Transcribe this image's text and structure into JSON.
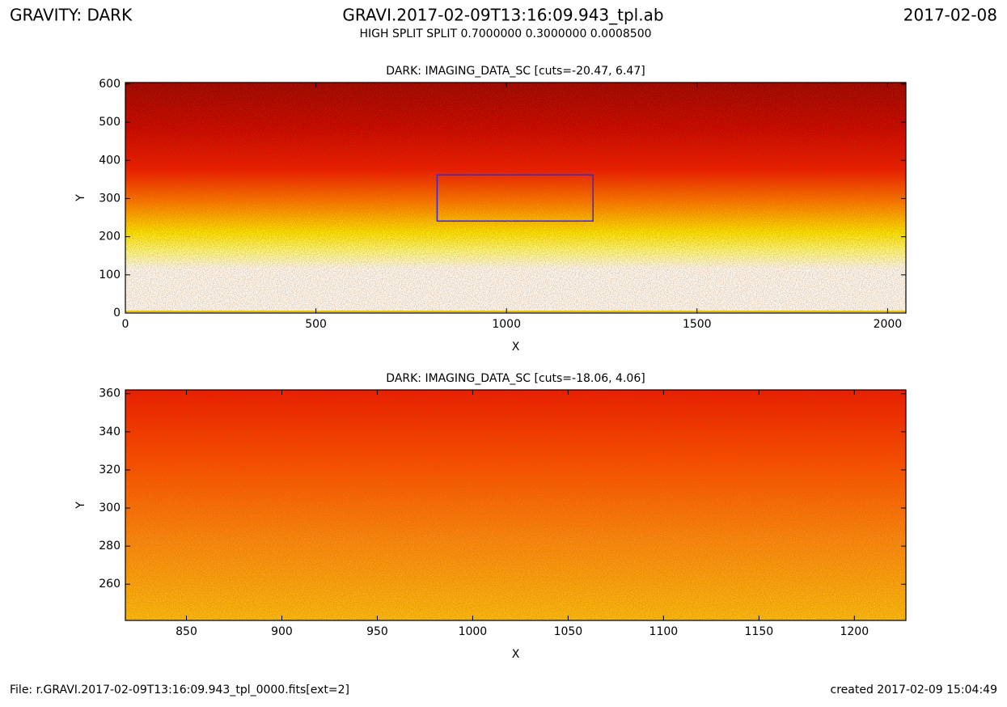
{
  "header": {
    "left": "GRAVITY: DARK",
    "title": "GRAVI.2017-02-09T13:16:09.943_tpl.ab",
    "right": "2017-02-08",
    "subtitle": "HIGH SPLIT SPLIT 0.7000000 0.3000000 0.0008500"
  },
  "footer": {
    "left": "File: r.GRAVI.2017-02-09T13:16:09.943_tpl_0000.fits[ext=2]",
    "right": "created 2017-02-09 15:04:49"
  },
  "chart_data": [
    {
      "type": "image",
      "title": "DARK: IMAGING_DATA_SC [cuts=-20.47, 6.47]",
      "xlabel": "X",
      "ylabel": "Y",
      "xlim": [
        0,
        2048
      ],
      "ylim": [
        0,
        604
      ],
      "xticks": [
        0,
        500,
        1000,
        1500,
        2000
      ],
      "yticks": [
        0,
        100,
        200,
        300,
        400,
        500,
        600
      ]
    },
    {
      "type": "image",
      "title": "DARK: IMAGING_DATA_SC [cuts=-18.06, 4.06]",
      "xlabel": "X",
      "ylabel": "Y",
      "xlim": [
        818,
        1227
      ],
      "ylim": [
        241,
        362
      ],
      "xticks": [
        850,
        900,
        950,
        1000,
        1050,
        1100,
        1150,
        1200
      ],
      "yticks": [
        260,
        280,
        300,
        320,
        340,
        360
      ]
    }
  ]
}
